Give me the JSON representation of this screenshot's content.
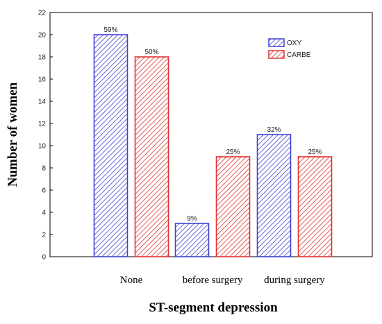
{
  "chart_data": {
    "type": "bar",
    "categories": [
      "None",
      "before surgery",
      "during surgery"
    ],
    "series": [
      {
        "name": "OXY",
        "values": [
          20,
          3,
          11
        ],
        "labels": [
          "59%",
          "9%",
          "32%"
        ],
        "color": "#4040d0"
      },
      {
        "name": "CARBE",
        "values": [
          18,
          9,
          9
        ],
        "labels": [
          "50%",
          "25%",
          "25%"
        ],
        "color": "#e03030"
      }
    ],
    "xlabel": "ST-segment depression",
    "ylabel": "Number of women",
    "ylim": [
      0,
      22
    ],
    "yticks": [
      0,
      2,
      4,
      6,
      8,
      10,
      12,
      14,
      16,
      18,
      20,
      22
    ],
    "grid": false,
    "legend_position": "top-right"
  }
}
